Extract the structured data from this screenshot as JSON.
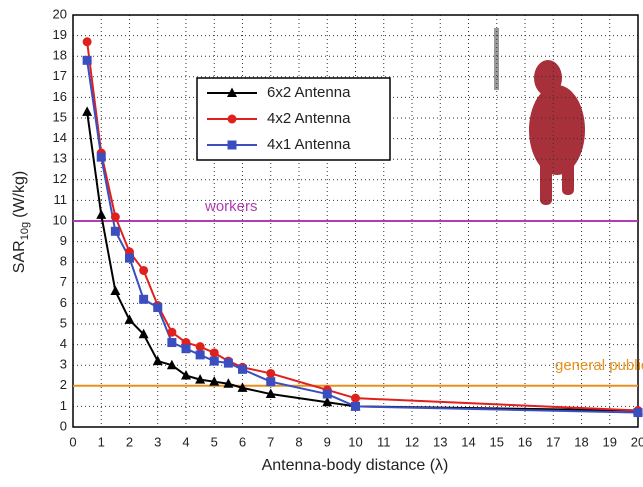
{
  "chart_data": {
    "type": "line",
    "x_label": "Antenna-body distance (λ)",
    "y_label": {
      "main": "SAR",
      "sub": "10g",
      "unit": "(W/kg)"
    },
    "x": [
      0.5,
      1,
      1.5,
      2,
      2.5,
      3,
      3.5,
      4,
      4.5,
      5,
      5.5,
      6,
      7,
      9,
      10,
      20
    ],
    "series": [
      {
        "name": "6x2 Antenna",
        "color": "#000000",
        "marker": "triangle",
        "values": [
          15.3,
          10.3,
          6.6,
          5.2,
          4.5,
          3.2,
          3.0,
          2.5,
          2.3,
          2.2,
          2.1,
          1.9,
          1.6,
          1.2,
          1.0,
          0.8
        ]
      },
      {
        "name": "4x2 Antenna",
        "color": "#e0201c",
        "marker": "circle",
        "values": [
          18.7,
          13.3,
          10.2,
          8.5,
          7.6,
          5.9,
          4.6,
          4.1,
          3.9,
          3.6,
          3.2,
          2.9,
          2.6,
          1.8,
          1.4,
          0.8
        ]
      },
      {
        "name": "4x1 Antenna",
        "color": "#3a4ec0",
        "marker": "square",
        "values": [
          17.8,
          13.1,
          9.5,
          8.2,
          6.2,
          5.8,
          4.1,
          3.8,
          3.5,
          3.2,
          3.1,
          2.8,
          2.2,
          1.6,
          1.0,
          0.7
        ]
      }
    ],
    "reference_lines": [
      {
        "value": 10,
        "label": "workers",
        "color": "#b03cb4"
      },
      {
        "value": 2,
        "label": "general public",
        "color": "#e8901c"
      }
    ],
    "xlim": [
      0,
      20
    ],
    "ylim": [
      0,
      20
    ],
    "xticks": [
      0,
      1,
      2,
      3,
      4,
      5,
      6,
      7,
      8,
      9,
      10,
      11,
      12,
      13,
      14,
      15,
      16,
      17,
      18,
      19,
      20
    ],
    "yticks": [
      0,
      1,
      2,
      3,
      4,
      5,
      6,
      7,
      8,
      9,
      10,
      11,
      12,
      13,
      14,
      15,
      16,
      17,
      18,
      19,
      20
    ],
    "grid": true
  }
}
